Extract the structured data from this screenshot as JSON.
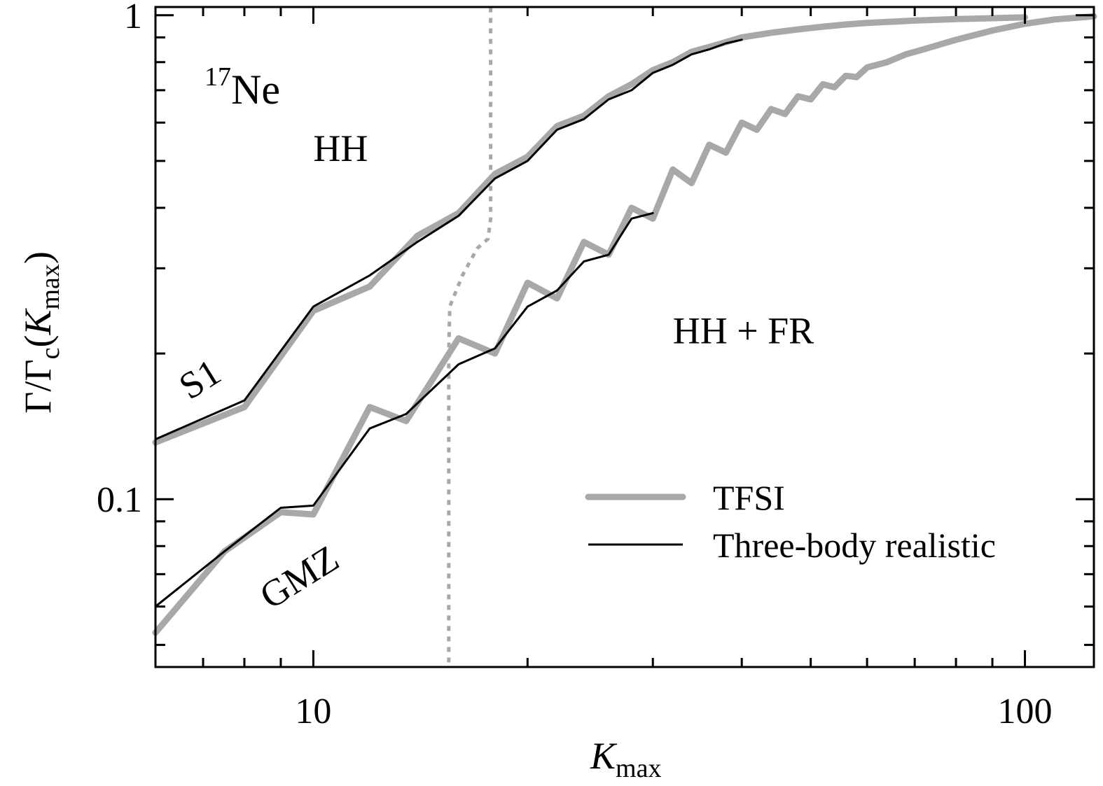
{
  "chart_data": {
    "type": "line",
    "x_scale": "log",
    "y_scale": "log",
    "xlim": [
      6,
      125
    ],
    "ylim": [
      0.045,
      1.04
    ],
    "xlabel": {
      "main": "K",
      "sub": "max"
    },
    "ylabel": {
      "main": "Γ/Γ",
      "sub1": "c",
      "paren_open": "(",
      "italic": "K",
      "sub2": "max",
      "paren_close": ")"
    },
    "x_ticks": [
      {
        "value": 10,
        "label": "10"
      },
      {
        "value": 100,
        "label": "100"
      }
    ],
    "x_minor_ticks": [
      6,
      7,
      8,
      9,
      20,
      30,
      40,
      50,
      60,
      70,
      80,
      90
    ],
    "y_ticks": [
      {
        "value": 0.1,
        "label": "0.1"
      },
      {
        "value": 1,
        "label": "1"
      }
    ],
    "y_minor_ticks": [
      0.05,
      0.06,
      0.07,
      0.08,
      0.09,
      0.2,
      0.3,
      0.4,
      0.5,
      0.6,
      0.7,
      0.8,
      0.9
    ],
    "nucleus": {
      "mass": "17",
      "symbol": "Ne"
    },
    "annotations": [
      {
        "id": "hh",
        "text": "HH",
        "x": 10,
        "y": 0.5
      },
      {
        "id": "hh-fr",
        "text": "HH + FR",
        "x": 32,
        "y": 0.21
      },
      {
        "id": "s1",
        "text": "S1",
        "x": 6.7,
        "y": 0.16,
        "rotate": -32
      },
      {
        "id": "gmz",
        "text": "GMZ",
        "x": 8.7,
        "y": 0.059,
        "rotate": -32
      }
    ],
    "legend": {
      "position": "bottom-right",
      "entries": [
        {
          "series": "TFSI",
          "label": "TFSI"
        },
        {
          "series": "Three-body realistic",
          "label": "Three-body realistic"
        }
      ]
    },
    "series": [
      {
        "name": "TFSI",
        "group": "S1",
        "color": "#a8a8a8",
        "x": [
          6,
          8,
          10,
          12,
          14,
          16,
          18,
          20,
          22,
          24,
          26,
          28,
          30,
          32,
          34,
          36,
          38,
          40,
          44,
          48,
          52,
          56,
          60,
          70,
          80,
          90,
          100
        ],
        "y": [
          0.131,
          0.155,
          0.245,
          0.275,
          0.35,
          0.39,
          0.47,
          0.51,
          0.59,
          0.62,
          0.68,
          0.72,
          0.77,
          0.8,
          0.84,
          0.86,
          0.88,
          0.9,
          0.92,
          0.935,
          0.947,
          0.957,
          0.964,
          0.975,
          0.982,
          0.986,
          0.99
        ]
      },
      {
        "name": "Three-body realistic",
        "group": "S1",
        "color": "#000000",
        "x": [
          6,
          8,
          10,
          12,
          14,
          16,
          18,
          20,
          22,
          24,
          26,
          28,
          30,
          32,
          34,
          36,
          38,
          40
        ],
        "y": [
          0.133,
          0.16,
          0.25,
          0.29,
          0.34,
          0.385,
          0.46,
          0.5,
          0.58,
          0.61,
          0.67,
          0.7,
          0.76,
          0.79,
          0.83,
          0.85,
          0.875,
          0.89
        ]
      },
      {
        "name": "TFSI",
        "group": "GMZ",
        "color": "#a8a8a8",
        "x": [
          6,
          7.5,
          9,
          10,
          12,
          13.5,
          16,
          18,
          20,
          22,
          24,
          26,
          28,
          30,
          32,
          34,
          36,
          38,
          40,
          42,
          44,
          46,
          48,
          50,
          52,
          54,
          56,
          58,
          60,
          64,
          68,
          72,
          80,
          90,
          100,
          110,
          120,
          125
        ],
        "y": [
          0.053,
          0.078,
          0.094,
          0.093,
          0.155,
          0.145,
          0.215,
          0.2,
          0.28,
          0.26,
          0.34,
          0.32,
          0.4,
          0.38,
          0.48,
          0.45,
          0.54,
          0.52,
          0.6,
          0.58,
          0.64,
          0.625,
          0.68,
          0.67,
          0.72,
          0.71,
          0.75,
          0.745,
          0.78,
          0.8,
          0.83,
          0.85,
          0.89,
          0.93,
          0.96,
          0.98,
          0.99,
          0.995
        ]
      },
      {
        "name": "Three-body realistic",
        "group": "GMZ",
        "color": "#000000",
        "x": [
          6,
          7.5,
          9,
          10,
          12,
          13.5,
          16,
          18,
          20,
          22,
          24,
          26,
          28,
          30
        ],
        "y": [
          0.06,
          0.078,
          0.096,
          0.097,
          0.14,
          0.15,
          0.19,
          0.205,
          0.25,
          0.27,
          0.31,
          0.32,
          0.38,
          0.39
        ]
      },
      {
        "name": "",
        "group": "boundary",
        "color": "#a8a8a8",
        "style": "dotted",
        "x": [
          15.5,
          15.5,
          15.5,
          15.55,
          15.8,
          16.2,
          17.0,
          17.6,
          17.75,
          17.75,
          17.75
        ],
        "y": [
          0.046,
          0.1,
          0.2,
          0.25,
          0.265,
          0.29,
          0.33,
          0.345,
          0.38,
          0.6,
          1.04
        ]
      }
    ]
  }
}
